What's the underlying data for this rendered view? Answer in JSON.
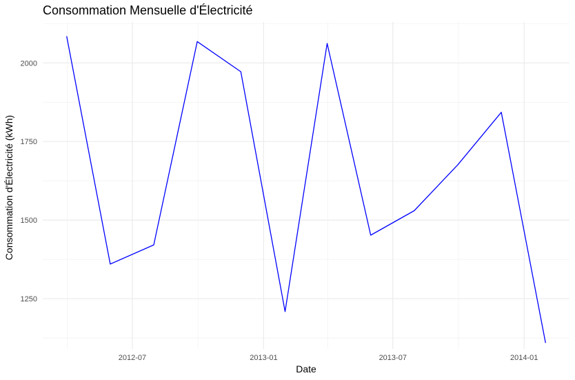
{
  "chart_data": {
    "type": "line",
    "title": "Consommation Mensuelle d'Électricité",
    "xlabel": "Date",
    "ylabel": "Consommation d'Électricité (kWh)",
    "x_tick_labels": [
      "2012-07",
      "2013-01",
      "2013-07",
      "2014-01"
    ],
    "y_tick_labels": [
      "1250",
      "1500",
      "1750",
      "2000"
    ],
    "ylim": [
      1090,
      2130
    ],
    "grid": true,
    "line_color": "#0000ff",
    "series": [
      {
        "x": [
          "2012-03-31",
          "2012-05-31",
          "2012-07-31",
          "2012-09-30",
          "2012-11-30",
          "2013-01-31",
          "2013-03-31",
          "2013-05-31",
          "2013-07-31",
          "2013-09-30",
          "2013-11-30",
          "2014-01-31"
        ],
        "values": [
          2085,
          1360,
          1421,
          2068,
          1972,
          1209,
          2062,
          1452,
          1530,
          1676,
          1843,
          1109
        ]
      }
    ]
  }
}
